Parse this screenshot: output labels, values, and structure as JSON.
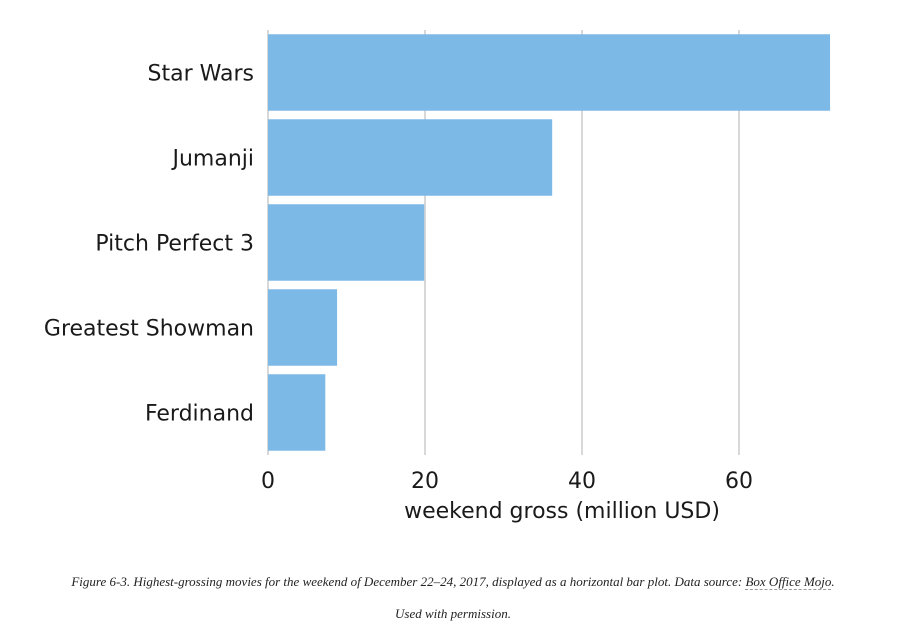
{
  "chart_data": {
    "type": "bar",
    "orientation": "horizontal",
    "categories": [
      "Star Wars",
      "Jumanji",
      "Pitch Perfect 3",
      "Greatest Showman",
      "Ferdinand"
    ],
    "values": [
      71.6,
      36.2,
      19.9,
      8.8,
      7.3
    ],
    "xlabel": "weekend gross (million USD)",
    "ylabel": "",
    "xlim": [
      0,
      75
    ],
    "xticks": [
      0,
      20,
      40,
      60
    ],
    "grid": "vertical",
    "bar_color": "#7db9e7",
    "grid_color": "#cccccc"
  },
  "caption": {
    "text": "Figure 6-3. Highest-grossing movies for the weekend of December 22–24, 2017, displayed as a horizontal bar plot. Data source: ",
    "source_link": "Box Office Mojo",
    "period": ".",
    "line2": "Used with permission."
  }
}
